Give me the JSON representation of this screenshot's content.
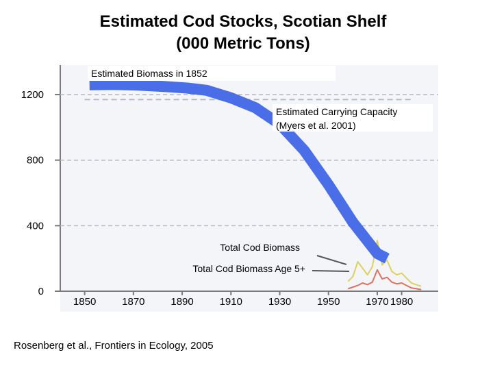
{
  "title_line1": "Estimated Cod Stocks, Scotian Shelf",
  "title_line2": "(000 Metric Tons)",
  "citation": "Rosenberg et al., Frontiers in Ecology, 2005",
  "colors": {
    "biomass_curve": "#4a6ee8",
    "total_biomass": "#e0d060",
    "biomass_age5": "#e07060",
    "gridline": "#b4b8c4",
    "plot_background": "#f4f5f8"
  },
  "chart_data": {
    "type": "line",
    "title": "Estimated Cod Stocks, Scotian Shelf (000 Metric Tons)",
    "xlim": [
      1840,
      1995
    ],
    "ylim": [
      0,
      1380
    ],
    "y_ticks": [
      0,
      400,
      800,
      1200
    ],
    "y_tick_labels": [
      "0",
      "400",
      "800",
      "1200"
    ],
    "x_ticks": [
      1850,
      1870,
      1890,
      1910,
      1930,
      1950,
      1970,
      1980
    ],
    "x_tick_labels": [
      "1850",
      "1870",
      "1890",
      "1910",
      "1930",
      "1950",
      "1970",
      "1980"
    ],
    "grid": true,
    "series": [
      {
        "name": "Estimated Biomass in 1852",
        "x": [
          1852,
          1862,
          1872,
          1882,
          1892,
          1900,
          1910,
          1920,
          1930,
          1940,
          1950,
          1960,
          1970,
          1974
        ],
        "y": [
          1260,
          1262,
          1258,
          1250,
          1240,
          1226,
          1180,
          1120,
          1020,
          860,
          650,
          420,
          230,
          200
        ]
      },
      {
        "name": "Estimated Carrying Capacity (Myers et al. 2001)",
        "x": [
          1850,
          1985
        ],
        "y": [
          1170,
          1170
        ]
      },
      {
        "name": "Total Cod Biomass",
        "x": [
          1958,
          1960,
          1962,
          1964,
          1966,
          1968,
          1970,
          1972,
          1974,
          1976,
          1978,
          1980,
          1982,
          1984,
          1986,
          1988
        ],
        "y": [
          60,
          90,
          180,
          140,
          100,
          150,
          310,
          160,
          190,
          120,
          100,
          110,
          80,
          50,
          40,
          30
        ]
      },
      {
        "name": "Total Cod Biomass Age 5+",
        "x": [
          1958,
          1960,
          1962,
          1964,
          1966,
          1968,
          1970,
          1972,
          1974,
          1976,
          1978,
          1980,
          1982,
          1984,
          1986,
          1988
        ],
        "y": [
          15,
          25,
          35,
          50,
          40,
          55,
          130,
          75,
          85,
          55,
          45,
          50,
          35,
          20,
          15,
          10
        ]
      }
    ],
    "annotations": [
      "Estimated Biomass in 1852",
      "Estimated Carrying Capacity",
      "(Myers et al. 2001)",
      "Total Cod Biomass",
      "Total Cod Biomass Age 5+"
    ]
  }
}
